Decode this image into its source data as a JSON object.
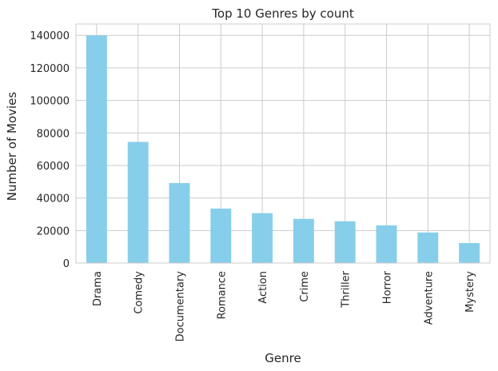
{
  "chart_data": {
    "type": "bar",
    "title": "Top 10 Genres by count",
    "xlabel": "Genre",
    "ylabel": "Number of Movies",
    "categories": [
      "Drama",
      "Comedy",
      "Documentary",
      "Romance",
      "Action",
      "Crime",
      "Thriller",
      "Horror",
      "Adventure",
      "Mystery"
    ],
    "values": [
      140000,
      74500,
      49200,
      33500,
      30700,
      27200,
      25700,
      23200,
      18800,
      12300
    ],
    "ylim": [
      0,
      147000
    ],
    "yticks": [
      "0",
      "20000",
      "40000",
      "60000",
      "80000",
      "100000",
      "120000",
      "140000"
    ],
    "grid": true,
    "bar_color": "#87ceeb",
    "grid_color": "#cccccc"
  }
}
